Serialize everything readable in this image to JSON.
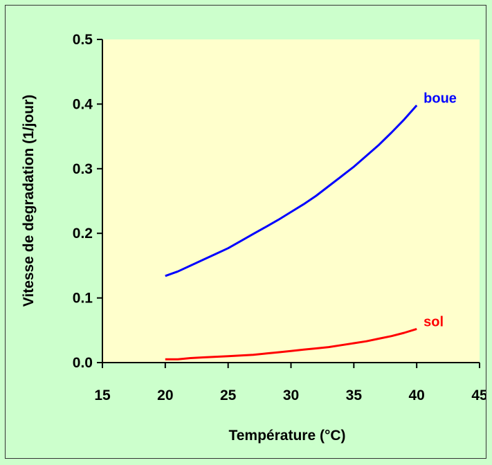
{
  "chart_data": {
    "type": "line",
    "title": "",
    "xlabel": "Température (°C)",
    "ylabel": "Vitesse de degradation (1/jour)",
    "xlim": [
      15,
      45
    ],
    "ylim": [
      0.0,
      0.5
    ],
    "xticks": [
      15,
      20,
      25,
      30,
      35,
      40,
      45
    ],
    "xtick_labels": [
      "15",
      "20",
      "25",
      "30",
      "35",
      "40",
      "45"
    ],
    "yticks": [
      0.0,
      0.1,
      0.2,
      0.3,
      0.4,
      0.5
    ],
    "ytick_labels": [
      "0.0",
      "0.1",
      "0.2",
      "0.3",
      "0.4",
      "0.5"
    ],
    "grid": false,
    "plot_background": "#ffffcc",
    "figure_background": "#ccffcc",
    "x": [
      20,
      21,
      22,
      23,
      24,
      25,
      26,
      27,
      28,
      29,
      30,
      31,
      32,
      33,
      34,
      35,
      36,
      37,
      38,
      39,
      40
    ],
    "series": [
      {
        "name": "boue",
        "color": "#0000ff",
        "values": [
          0.134,
          0.141,
          0.15,
          0.159,
          0.168,
          0.177,
          0.188,
          0.199,
          0.21,
          0.221,
          0.233,
          0.245,
          0.258,
          0.273,
          0.288,
          0.303,
          0.32,
          0.337,
          0.356,
          0.376,
          0.398
        ]
      },
      {
        "name": "sol",
        "color": "#ff0000",
        "values": [
          0.005,
          0.005,
          0.007,
          0.008,
          0.009,
          0.01,
          0.011,
          0.012,
          0.014,
          0.016,
          0.018,
          0.02,
          0.022,
          0.024,
          0.027,
          0.03,
          0.033,
          0.037,
          0.041,
          0.046,
          0.052
        ]
      }
    ]
  }
}
